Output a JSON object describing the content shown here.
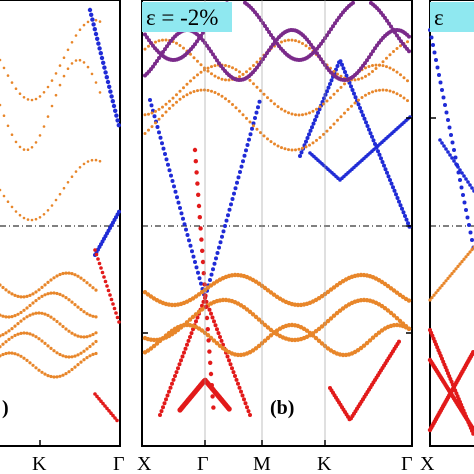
{
  "colors": {
    "orbital_blue": "#1f2bd6",
    "orbital_red": "#e21a1a",
    "orbital_orange": "#e8862a",
    "orbital_purple": "#7a2a8a",
    "label_box": "#8fe8f0",
    "fermi_line": "#000000"
  },
  "chart_data": [
    {
      "type": "scatter",
      "panel_tag": ")",
      "strain_label": "",
      "x_ticks": [
        "K",
        "Γ"
      ],
      "fermi_level": 0,
      "grid": false
    },
    {
      "type": "scatter",
      "panel_tag": "(b)",
      "strain_label": "ε = -2%",
      "x_ticks": [
        "X",
        "Γ",
        "M",
        "K",
        "Γ"
      ],
      "fermi_level": 0,
      "grid": false,
      "series_colors": [
        "orbital_blue",
        "orbital_red",
        "orbital_orange"
      ]
    },
    {
      "type": "scatter",
      "panel_tag": "",
      "strain_label": "ε",
      "x_ticks": [
        "X"
      ],
      "fermi_level": 0,
      "grid": false
    }
  ]
}
